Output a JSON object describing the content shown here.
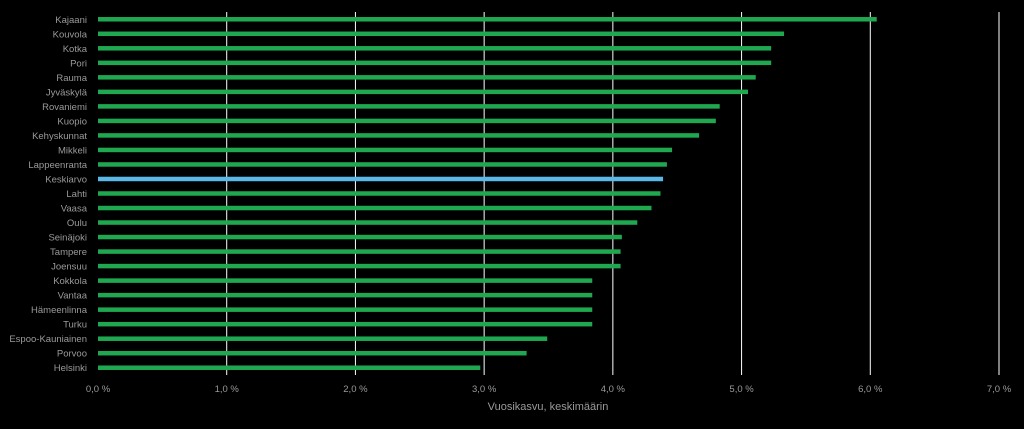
{
  "chart_data": {
    "type": "bar",
    "orientation": "horizontal",
    "xlabel": "Vuosikasvu, keskimäärin",
    "ylabel": "",
    "xlim": [
      0,
      7
    ],
    "x_ticks": [
      "0,0 %",
      "1,0 %",
      "2,0 %",
      "3,0 %",
      "4,0 %",
      "5,0 %",
      "6,0 %",
      "7,0 %"
    ],
    "grid": "vertical",
    "colors": {
      "default": "#1fa84f",
      "highlight": "#5bb8e6",
      "grid": "#ffffff",
      "background": "#000000"
    },
    "categories": [
      "Kajaani",
      "Kouvola",
      "Kotka",
      "Pori",
      "Rauma",
      "Jyväskylä",
      "Rovaniemi",
      "Kuopio",
      "Kehyskunnat",
      "Mikkeli",
      "Lappeenranta",
      "Keskiarvo",
      "Lahti",
      "Vaasa",
      "Oulu",
      "Seinäjoki",
      "Tampere",
      "Joensuu",
      "Kokkola",
      "Vantaa",
      "Hämeenlinna",
      "Turku",
      "Espoo-Kauniainen",
      "Porvoo",
      "Helsinki"
    ],
    "values": [
      6.05,
      5.33,
      5.23,
      5.23,
      5.11,
      5.05,
      4.83,
      4.8,
      4.67,
      4.46,
      4.42,
      4.39,
      4.37,
      4.3,
      4.19,
      4.07,
      4.06,
      4.06,
      3.84,
      3.84,
      3.84,
      3.84,
      3.49,
      3.33,
      2.97
    ],
    "highlight": "Keskiarvo"
  }
}
